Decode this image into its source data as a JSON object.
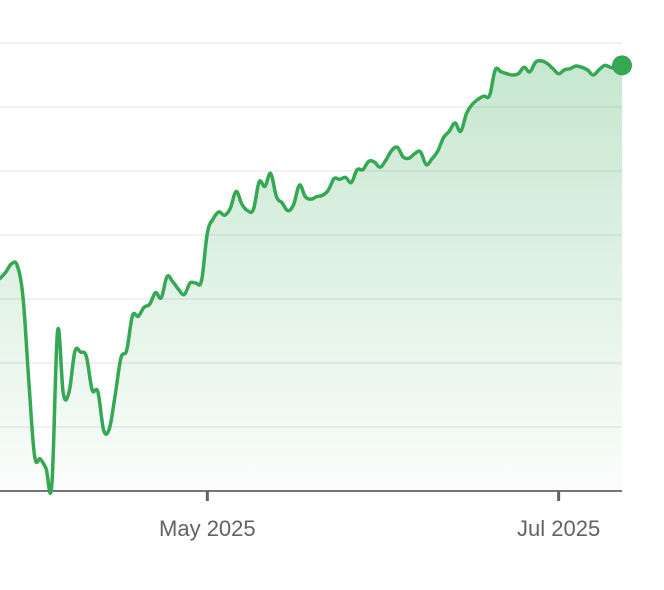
{
  "chart_data": {
    "type": "area",
    "title": "",
    "xlabel": "",
    "ylabel": "",
    "grid": true,
    "legend": "none",
    "x_ticks": [
      "May 2025",
      "Jul 2025"
    ],
    "x_tick_dates": [
      "2025-05-01",
      "2025-07-01"
    ],
    "xlim": [
      "2025-03-26",
      "2025-07-12"
    ],
    "ylim": [
      0,
      7
    ],
    "y_gridlines": [
      1,
      2,
      3,
      4,
      5,
      6,
      7
    ],
    "series": [
      {
        "color": "#34a853",
        "x": [
          "2025-03-26",
          "2025-03-27",
          "2025-03-28",
          "2025-03-29",
          "2025-03-30",
          "2025-03-31",
          "2025-04-01",
          "2025-04-02",
          "2025-04-03",
          "2025-04-04",
          "2025-04-05",
          "2025-04-06",
          "2025-04-07",
          "2025-04-08",
          "2025-04-09",
          "2025-04-10",
          "2025-04-11",
          "2025-04-12",
          "2025-04-13",
          "2025-04-14",
          "2025-04-15",
          "2025-04-16",
          "2025-04-17",
          "2025-04-18",
          "2025-04-19",
          "2025-04-20",
          "2025-04-21",
          "2025-04-22",
          "2025-04-23",
          "2025-04-24",
          "2025-04-25",
          "2025-04-26",
          "2025-04-27",
          "2025-04-28",
          "2025-04-29",
          "2025-04-30",
          "2025-05-01",
          "2025-05-02",
          "2025-05-03",
          "2025-05-04",
          "2025-05-05",
          "2025-05-06",
          "2025-05-07",
          "2025-05-08",
          "2025-05-09",
          "2025-05-10",
          "2025-05-11",
          "2025-05-12",
          "2025-05-13",
          "2025-05-14",
          "2025-05-15",
          "2025-05-16",
          "2025-05-17",
          "2025-05-18",
          "2025-05-19",
          "2025-05-20",
          "2025-05-21",
          "2025-05-22",
          "2025-05-23",
          "2025-05-24",
          "2025-05-25",
          "2025-05-26",
          "2025-05-27",
          "2025-05-28",
          "2025-05-29",
          "2025-05-30",
          "2025-05-31",
          "2025-06-01",
          "2025-06-02",
          "2025-06-03",
          "2025-06-04",
          "2025-06-05",
          "2025-06-06",
          "2025-06-07",
          "2025-06-08",
          "2025-06-09",
          "2025-06-10",
          "2025-06-11",
          "2025-06-12",
          "2025-06-13",
          "2025-06-14",
          "2025-06-15",
          "2025-06-16",
          "2025-06-17",
          "2025-06-18",
          "2025-06-19",
          "2025-06-20",
          "2025-06-21",
          "2025-06-22",
          "2025-06-23",
          "2025-06-24",
          "2025-06-25",
          "2025-06-26",
          "2025-06-27",
          "2025-06-28",
          "2025-06-29",
          "2025-06-30",
          "2025-07-01",
          "2025-07-02",
          "2025-07-03",
          "2025-07-04",
          "2025-07-05",
          "2025-07-06",
          "2025-07-07",
          "2025-07-08",
          "2025-07-09",
          "2025-07-10",
          "2025-07-11",
          "2025-07-12"
        ],
        "y": [
          3.32,
          3.42,
          3.55,
          3.52,
          3.02,
          1.72,
          0.55,
          0.5,
          0.35,
          0.1,
          2.5,
          1.52,
          1.55,
          2.18,
          2.17,
          2.1,
          1.58,
          1.55,
          0.95,
          0.98,
          1.5,
          2.08,
          2.2,
          2.74,
          2.73,
          2.87,
          2.92,
          3.1,
          3.02,
          3.35,
          3.27,
          3.15,
          3.07,
          3.25,
          3.25,
          3.29,
          4.03,
          4.25,
          4.36,
          4.31,
          4.42,
          4.68,
          4.48,
          4.38,
          4.4,
          4.83,
          4.76,
          4.96,
          4.6,
          4.5,
          4.38,
          4.48,
          4.78,
          4.6,
          4.56,
          4.6,
          4.62,
          4.7,
          4.88,
          4.87,
          4.9,
          4.82,
          5.02,
          5.02,
          5.15,
          5.14,
          5.06,
          5.17,
          5.32,
          5.37,
          5.22,
          5.2,
          5.27,
          5.3,
          5.1,
          5.19,
          5.31,
          5.52,
          5.62,
          5.75,
          5.62,
          5.9,
          6.04,
          6.12,
          6.17,
          6.18,
          6.58,
          6.55,
          6.52,
          6.5,
          6.52,
          6.62,
          6.55,
          6.7,
          6.72,
          6.68,
          6.6,
          6.52,
          6.58,
          6.6,
          6.64,
          6.62,
          6.58,
          6.5,
          6.58,
          6.65,
          6.62,
          6.6,
          6.65
        ]
      }
    ]
  }
}
